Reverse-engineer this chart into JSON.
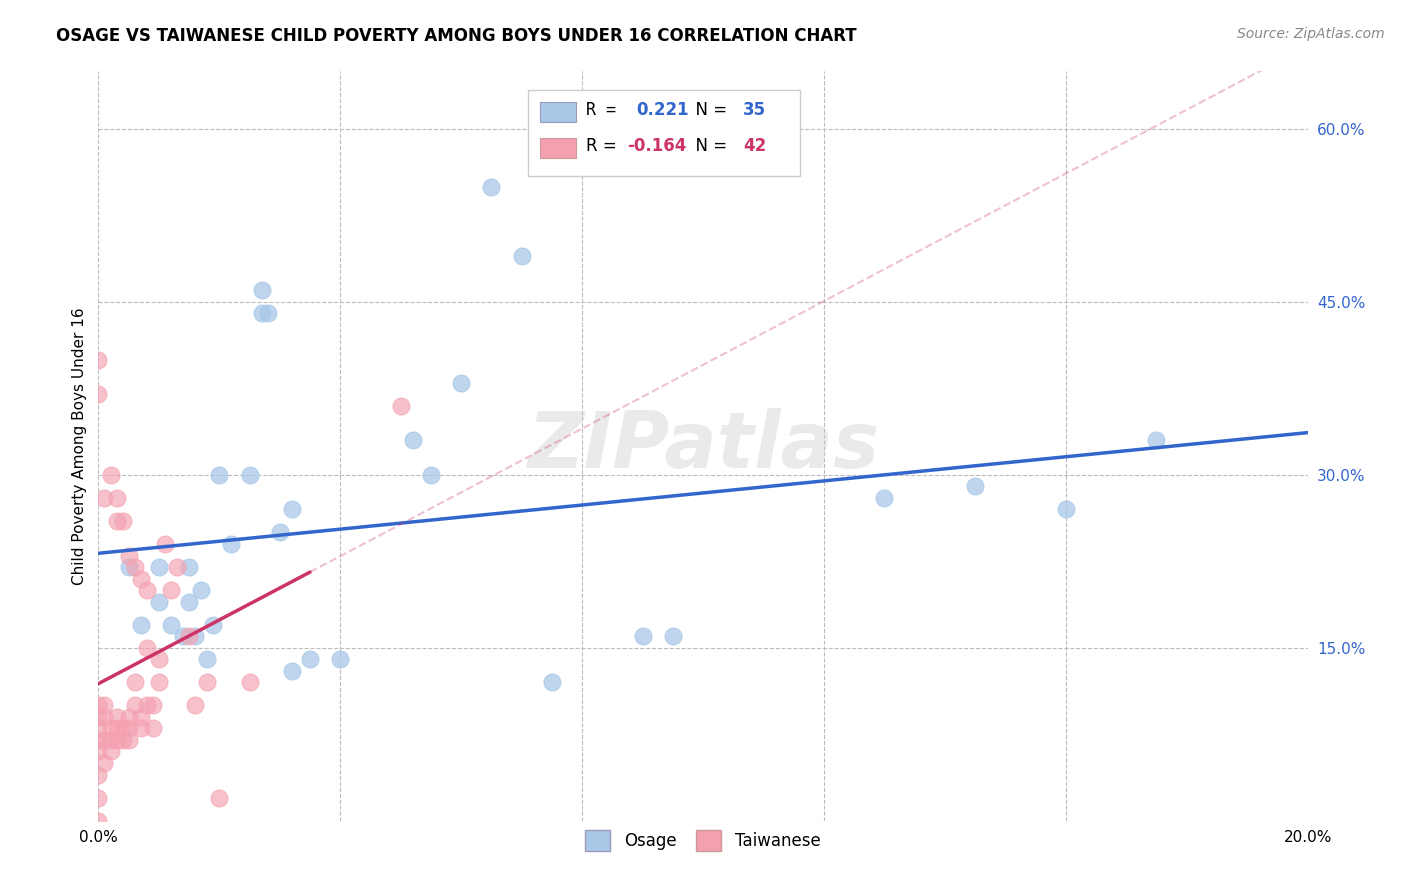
{
  "title": "OSAGE VS TAIWANESE CHILD POVERTY AMONG BOYS UNDER 16 CORRELATION CHART",
  "source": "Source: ZipAtlas.com",
  "ylabel": "Child Poverty Among Boys Under 16",
  "xlim": [
    0.0,
    0.2
  ],
  "ylim": [
    0.0,
    0.65
  ],
  "yticks": [
    0.0,
    0.15,
    0.3,
    0.45,
    0.6
  ],
  "ytick_labels": [
    "",
    "15.0%",
    "30.0%",
    "45.0%",
    "60.0%"
  ],
  "xticks": [
    0.0,
    0.04,
    0.08,
    0.12,
    0.16,
    0.2
  ],
  "xtick_labels": [
    "0.0%",
    "",
    "",
    "",
    "",
    "20.0%"
  ],
  "legend_r_osage": "0.221",
  "legend_n_osage": "35",
  "legend_r_taiwanese": "-0.164",
  "legend_n_taiwanese": "42",
  "osage_color": "#a8c8e8",
  "taiwanese_color": "#f4a0b0",
  "osage_line_color": "#3366cc",
  "taiwanese_line_color": "#cc3366",
  "background_color": "#ffffff",
  "grid_color": "#bbbbbb",
  "watermark": "ZIPatlas",
  "osage_x": [
    0.005,
    0.007,
    0.01,
    0.01,
    0.012,
    0.014,
    0.015,
    0.015,
    0.016,
    0.017,
    0.018,
    0.019,
    0.02,
    0.022,
    0.025,
    0.027,
    0.027,
    0.028,
    0.03,
    0.032,
    0.032,
    0.035,
    0.04,
    0.052,
    0.055,
    0.06,
    0.065,
    0.07,
    0.075,
    0.09,
    0.095,
    0.13,
    0.145,
    0.16,
    0.175
  ],
  "osage_y": [
    0.22,
    0.17,
    0.22,
    0.19,
    0.17,
    0.16,
    0.19,
    0.22,
    0.16,
    0.2,
    0.14,
    0.17,
    0.3,
    0.24,
    0.3,
    0.44,
    0.46,
    0.44,
    0.25,
    0.27,
    0.13,
    0.14,
    0.14,
    0.33,
    0.3,
    0.38,
    0.55,
    0.49,
    0.12,
    0.16,
    0.16,
    0.28,
    0.29,
    0.27,
    0.33
  ],
  "taiwanese_x": [
    0.0,
    0.0,
    0.0,
    0.0,
    0.0,
    0.0,
    0.0,
    0.0,
    0.001,
    0.001,
    0.001,
    0.001,
    0.002,
    0.002,
    0.002,
    0.003,
    0.003,
    0.003,
    0.004,
    0.004,
    0.005,
    0.005,
    0.005,
    0.006,
    0.006,
    0.007,
    0.007,
    0.008,
    0.008,
    0.009,
    0.009,
    0.01,
    0.01,
    0.011,
    0.012,
    0.013,
    0.015,
    0.016,
    0.018,
    0.02,
    0.025,
    0.05
  ],
  "taiwanese_y": [
    0.0,
    0.02,
    0.04,
    0.06,
    0.07,
    0.08,
    0.09,
    0.1,
    0.05,
    0.07,
    0.09,
    0.1,
    0.06,
    0.07,
    0.08,
    0.07,
    0.08,
    0.09,
    0.07,
    0.08,
    0.07,
    0.08,
    0.09,
    0.1,
    0.12,
    0.08,
    0.09,
    0.15,
    0.1,
    0.08,
    0.1,
    0.12,
    0.14,
    0.24,
    0.2,
    0.22,
    0.16,
    0.1,
    0.12,
    0.02,
    0.12,
    0.36
  ],
  "taiwanese_also_left": [
    0.0,
    0.0,
    0.001,
    0.002,
    0.003,
    0.003,
    0.004,
    0.005,
    0.006,
    0.007,
    0.008
  ],
  "taiwanese_also_left_y": [
    0.37,
    0.4,
    0.28,
    0.3,
    0.26,
    0.28,
    0.26,
    0.23,
    0.22,
    0.21,
    0.2
  ]
}
